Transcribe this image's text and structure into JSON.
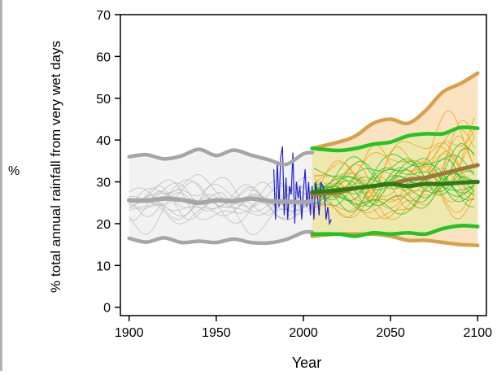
{
  "panel_label": "%",
  "chart_data": {
    "type": "line",
    "title": "",
    "xlabel": "Year",
    "ylabel": "% total annual rainfall from very wet days",
    "xlim": [
      1895,
      2105
    ],
    "ylim": [
      -2,
      70
    ],
    "xticks": [
      1900,
      1950,
      2000,
      2050,
      2100
    ],
    "yticks": [
      0,
      10,
      20,
      30,
      40,
      50,
      60,
      70
    ],
    "grid": false,
    "legend": "none",
    "colors": {
      "historical": "#a6a6a6",
      "historical_band": "#f2f2f2",
      "observed": "#1f1fd6",
      "low_emissions": "#22c322",
      "low_emissions_median": "#2f7a17",
      "high_emissions": "#f0a020",
      "high_emissions_band": "#fbe2c0",
      "high_emissions_median": "#9c7a3c",
      "overlap_band": "#eae8a8"
    },
    "series": [
      {
        "key": "historical_median",
        "x": [
          1900,
          1910,
          1920,
          1930,
          1940,
          1950,
          1960,
          1970,
          1980,
          1990,
          2000,
          2005
        ],
        "values": [
          25.6,
          25.5,
          26,
          25.7,
          25,
          25.6,
          25.4,
          26,
          25.4,
          25.3,
          25.1,
          25.4
        ]
      },
      {
        "key": "historical_upper",
        "x": [
          1900,
          1910,
          1920,
          1930,
          1940,
          1950,
          1960,
          1970,
          1980,
          1990,
          2000,
          2005
        ],
        "values": [
          36,
          36.5,
          35.5,
          36.2,
          37.8,
          36.3,
          37.6,
          36.4,
          35.3,
          34.2,
          36.7,
          37
        ]
      },
      {
        "key": "historical_lower",
        "x": [
          1900,
          1910,
          1920,
          1930,
          1940,
          1950,
          1960,
          1970,
          1980,
          1990,
          2000,
          2005
        ],
        "values": [
          16.5,
          15.6,
          16.6,
          15.5,
          15.8,
          15.5,
          16.3,
          15.5,
          15.4,
          16.2,
          17.9,
          18
        ]
      },
      {
        "key": "observed",
        "x": [
          1983,
          1984,
          1985,
          1986,
          1987,
          1988,
          1989,
          1990,
          1991,
          1992,
          1993,
          1994,
          1995,
          1996,
          1997,
          1998,
          1999,
          2000,
          2001,
          2002,
          2003,
          2004,
          2005,
          2006,
          2007,
          2008,
          2009,
          2010,
          2011,
          2012,
          2013,
          2014,
          2015,
          2016
        ],
        "values": [
          33,
          21,
          35,
          24,
          36,
          38.5,
          22,
          31,
          21,
          29,
          27,
          37,
          20,
          30,
          26,
          29,
          21,
          28,
          33,
          24,
          30,
          22,
          29,
          21,
          30,
          27,
          22,
          30,
          29,
          28,
          21,
          24,
          20,
          21
        ]
      },
      {
        "key": "low_emissions_median",
        "x": [
          2005,
          2020,
          2030,
          2040,
          2050,
          2060,
          2070,
          2080,
          2090,
          2100
        ],
        "values": [
          27.5,
          28,
          28.5,
          29,
          29.5,
          29,
          29.5,
          29.5,
          29.8,
          30
        ]
      },
      {
        "key": "low_emissions_upper",
        "x": [
          2005,
          2020,
          2030,
          2040,
          2050,
          2060,
          2070,
          2080,
          2090,
          2100
        ],
        "values": [
          38,
          37.5,
          38,
          39,
          39.5,
          41,
          41.5,
          41.5,
          43,
          42.8
        ]
      },
      {
        "key": "low_emissions_lower",
        "x": [
          2005,
          2020,
          2030,
          2040,
          2050,
          2060,
          2070,
          2080,
          2090,
          2100
        ],
        "values": [
          17.5,
          17.5,
          17,
          17.8,
          17.5,
          17.8,
          17.5,
          18.8,
          19.5,
          19.3
        ]
      },
      {
        "key": "high_emissions_median",
        "x": [
          2005,
          2020,
          2030,
          2040,
          2050,
          2060,
          2070,
          2080,
          2090,
          2100
        ],
        "values": [
          27,
          27.5,
          28.5,
          29,
          29.5,
          30.5,
          31,
          32,
          33,
          34
        ]
      },
      {
        "key": "high_emissions_upper",
        "x": [
          2005,
          2020,
          2030,
          2040,
          2050,
          2060,
          2070,
          2080,
          2090,
          2100
        ],
        "values": [
          38,
          39.5,
          41,
          44,
          45,
          44,
          47,
          51.5,
          53.5,
          56
        ]
      },
      {
        "key": "high_emissions_lower",
        "x": [
          2005,
          2020,
          2030,
          2040,
          2050,
          2060,
          2070,
          2080,
          2090,
          2100
        ],
        "values": [
          17,
          17.5,
          17.5,
          17.5,
          17,
          16,
          16,
          15.5,
          15,
          14.8
        ]
      }
    ]
  }
}
